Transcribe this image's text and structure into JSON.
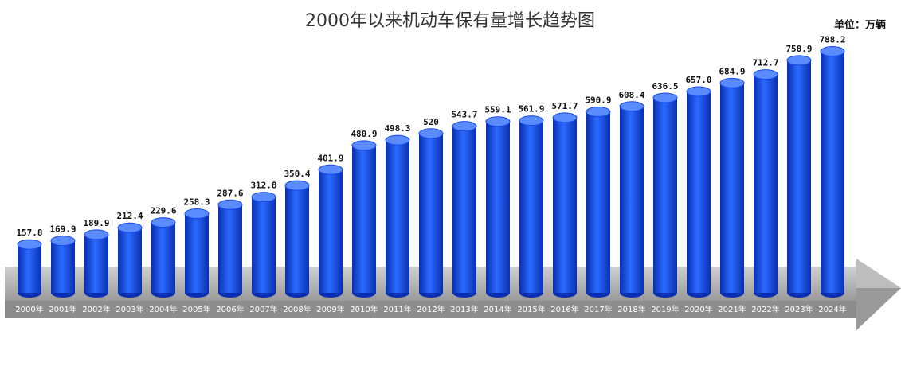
{
  "chart_data": {
    "type": "bar",
    "title": "2000年以来机动车保有量增长趋势图",
    "subtitle": "单位：万辆",
    "categories": [
      "2000年",
      "2001年",
      "2002年",
      "2003年",
      "2004年",
      "2005年",
      "2006年",
      "2007年",
      "2008年",
      "2009年",
      "2010年",
      "2011年",
      "2012年",
      "2013年",
      "2014年",
      "2015年",
      "2016年",
      "2017年",
      "2018年",
      "2019年",
      "2020年",
      "2021年",
      "2022年",
      "2023年",
      "2024年"
    ],
    "values": [
      157.8,
      169.9,
      189.9,
      212.4,
      229.6,
      258.3,
      287.6,
      312.8,
      350.4,
      401.9,
      480.9,
      498.3,
      520,
      543.7,
      559.1,
      561.9,
      571.7,
      590.9,
      608.4,
      636.5,
      657.0,
      684.9,
      712.7,
      758.9,
      788.2
    ],
    "value_labels": [
      "157.8",
      "169.9",
      "189.9",
      "212.4",
      "229.6",
      "258.3",
      "287.6",
      "312.8",
      "350.4",
      "401.9",
      "480.9",
      "498.3",
      "520",
      "543.7",
      "559.1",
      "561.9",
      "571.7",
      "590.9",
      "608.4",
      "636.5",
      "657.0",
      "684.9",
      "712.7",
      "758.9",
      "788.2"
    ],
    "color": "#1447f0"
  }
}
